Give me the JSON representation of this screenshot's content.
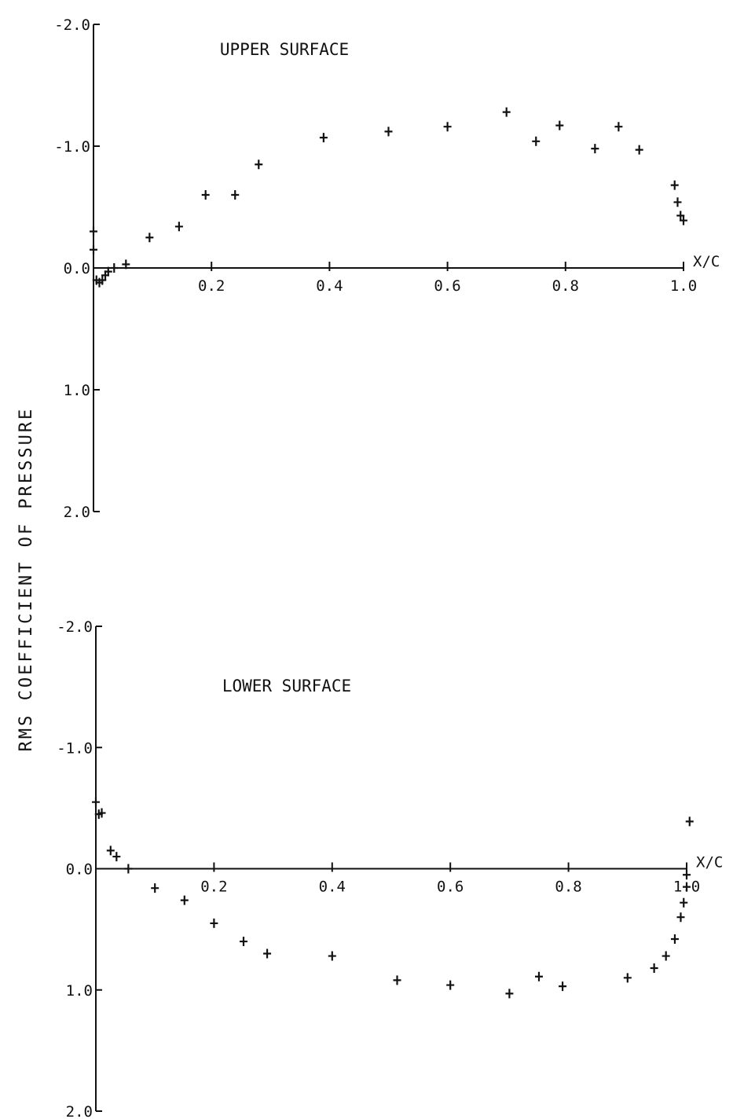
{
  "figure": {
    "ylabel": "RMS COEFFICIENT OF PRESSURE",
    "xlabel": "X/C"
  },
  "chart_data": [
    {
      "type": "scatter",
      "title": "UPPER SURFACE",
      "xlabel": "X/C",
      "ylabel": "RMS COEFFICIENT OF PRESSURE",
      "xlim": [
        0.0,
        1.0
      ],
      "ylim": [
        -2.0,
        2.0
      ],
      "y_inverted": true,
      "grid": false,
      "legend": "none",
      "x_tick_labels": [
        "0.2",
        "0.4",
        "0.6",
        "0.8",
        "1.0"
      ],
      "y_tick_labels": [
        "-2.0",
        "-1.0",
        "0.0",
        "1.0",
        "2.0"
      ],
      "origin_label": "0.0",
      "x_ticks": [
        0.2,
        0.4,
        0.6,
        0.8,
        1.0
      ],
      "y_ticks": [
        -2.0,
        -1.0,
        0.0,
        1.0,
        2.0
      ],
      "series": [
        {
          "marker": "+",
          "x": [
            0.0,
            0.0,
            0.005,
            0.01,
            0.015,
            0.02,
            0.025,
            0.035,
            0.055,
            0.095,
            0.145,
            0.19,
            0.24,
            0.28,
            0.39,
            0.5,
            0.6,
            0.7,
            0.75,
            0.79,
            0.85,
            0.89,
            0.925,
            0.985,
            0.99,
            0.995,
            1.0
          ],
          "y": [
            -0.3,
            -0.15,
            0.1,
            0.12,
            0.1,
            0.06,
            0.03,
            0.0,
            -0.03,
            -0.25,
            -0.34,
            -0.6,
            -0.6,
            -0.85,
            -1.07,
            -1.12,
            -1.16,
            -1.28,
            -1.04,
            -1.17,
            -0.98,
            -1.16,
            -0.97,
            -0.68,
            -0.54,
            -0.43,
            -0.39
          ]
        }
      ]
    },
    {
      "type": "scatter",
      "title": "LOWER SURFACE",
      "xlabel": "X/C",
      "ylabel": "RMS COEFFICIENT OF PRESSURE",
      "xlim": [
        0.0,
        1.0
      ],
      "ylim": [
        -2.0,
        2.0
      ],
      "y_inverted": true,
      "grid": false,
      "legend": "none",
      "x_tick_labels": [
        "0.2",
        "0.4",
        "0.6",
        "0.8",
        "1.0"
      ],
      "y_tick_labels": [
        "-2.0",
        "-1.0",
        "0.0",
        "1.0",
        "2.0"
      ],
      "origin_label": "0.0",
      "x_ticks": [
        0.2,
        0.4,
        0.6,
        0.8,
        1.0
      ],
      "y_ticks": [
        -2.0,
        -1.0,
        0.0,
        1.0,
        2.0
      ],
      "series": [
        {
          "marker": "+",
          "x": [
            0.0,
            0.005,
            0.01,
            0.025,
            0.035,
            0.055,
            0.1,
            0.15,
            0.2,
            0.25,
            0.29,
            0.4,
            0.51,
            0.6,
            0.7,
            0.75,
            0.79,
            0.9,
            0.945,
            0.965,
            0.98,
            0.99,
            0.995,
            1.0,
            1.0,
            1.005
          ],
          "y": [
            -0.55,
            -0.45,
            -0.46,
            -0.15,
            -0.1,
            0.0,
            0.16,
            0.26,
            0.45,
            0.6,
            0.7,
            0.72,
            0.92,
            0.96,
            1.03,
            0.89,
            0.97,
            0.9,
            0.82,
            0.72,
            0.58,
            0.4,
            0.28,
            0.15,
            0.05,
            -0.39
          ]
        }
      ]
    }
  ]
}
